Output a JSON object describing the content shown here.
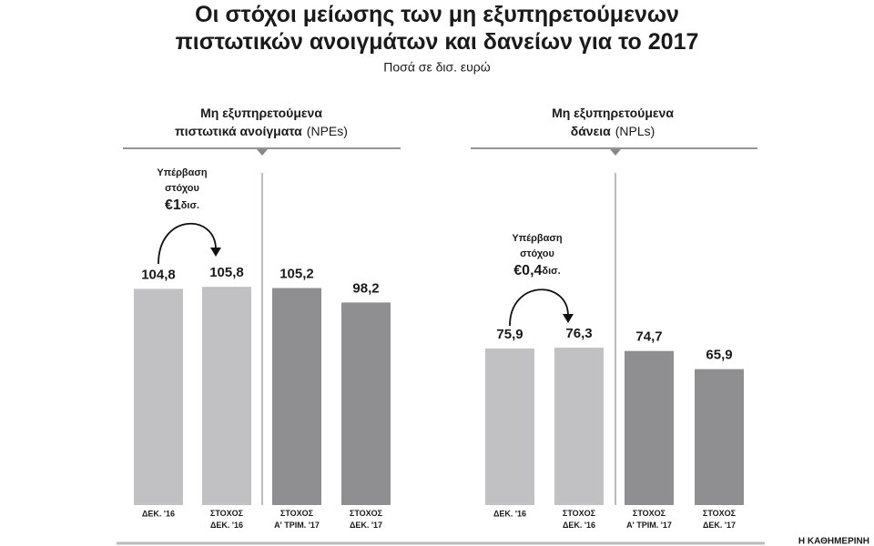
{
  "title": "Οι στόχοι μείωσης των μη εξυπηρετούμενων\nπιστωτικών ανοιγμάτων και δανείων για το 2017",
  "subtitle": "Ποσά σε δισ. ευρώ",
  "credit": "Η ΚΑΘΗΜΕΡΙΝΗ",
  "chart_data": [
    {
      "type": "bar",
      "title": "Μη εξυπηρετούμενα\nπιστωτικά ανοίγματα",
      "title_note": "(NPEs)",
      "categories": [
        "ΔΕΚ. '16",
        "ΣΤΟΧΟΣ\nΔΕΚ. '16",
        "ΣΤΟΧΟΣ\nΑ' ΤΡΙΜ. '17",
        "ΣΤΟΧΟΣ\nΔΕΚ. '17"
      ],
      "values": [
        104.8,
        105.8,
        105.2,
        98.2
      ],
      "value_labels": [
        "104,8",
        "105,8",
        "105,2",
        "98,2"
      ],
      "colors": [
        "#c1c1c3",
        "#c1c1c3",
        "#8f8f92",
        "#8f8f92"
      ],
      "ylim": [
        0,
        120
      ],
      "annotation": {
        "text": "Υπέρβαση\nστόχου",
        "amount": "€1",
        "unit": "δισ."
      }
    },
    {
      "type": "bar",
      "title": "Μη εξυπηρετούμενα\nδάνεια",
      "title_note": "(NPLs)",
      "categories": [
        "ΔΕΚ. '16",
        "ΣΤΟΧΟΣ\nΔΕΚ. '16",
        "ΣΤΟΧΟΣ\nΑ' ΤΡΙΜ. '17",
        "ΣΤΟΧΟΣ\nΔΕΚ. '17"
      ],
      "values": [
        75.9,
        76.3,
        74.7,
        65.9
      ],
      "value_labels": [
        "75,9",
        "76,3",
        "74,7",
        "65,9"
      ],
      "colors": [
        "#c1c1c3",
        "#c1c1c3",
        "#8f8f92",
        "#8f8f92"
      ],
      "ylim": [
        0,
        120
      ],
      "annotation": {
        "text": "Υπέρβαση\nστόχου",
        "amount": "€0,4",
        "unit": "δισ."
      }
    }
  ]
}
